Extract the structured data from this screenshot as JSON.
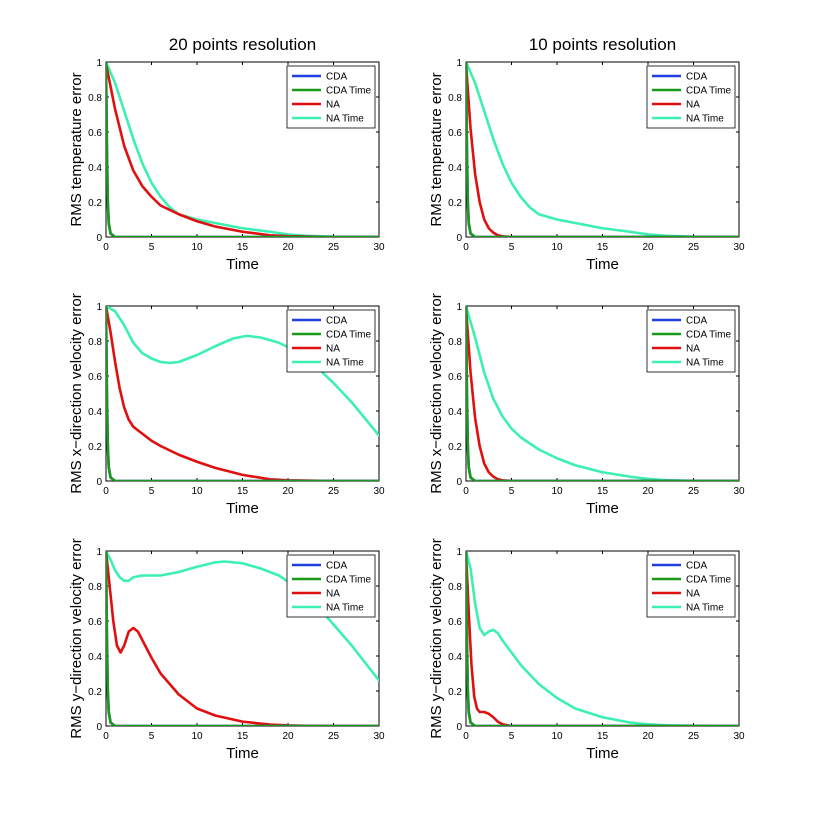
{
  "columns": [
    "20 points resolution",
    "10 points resolution"
  ],
  "chart_data": [
    {
      "type": "line",
      "row": 0,
      "col": 0,
      "title": "20 points resolution",
      "xlabel": "Time",
      "ylabel": "RMS temperature error",
      "xlim": [
        0,
        30
      ],
      "ylim": [
        0,
        1
      ],
      "xticks": [
        0,
        5,
        10,
        15,
        20,
        25,
        30
      ],
      "yticks": [
        0,
        0.2,
        0.4,
        0.6,
        0.8,
        1
      ],
      "series": [
        {
          "name": "CDA",
          "color": "#1f3fe0",
          "x": [
            0,
            0.1,
            0.2,
            0.3,
            0.5,
            1,
            30
          ],
          "y": [
            1,
            0.5,
            0.2,
            0.08,
            0.02,
            0,
            0
          ]
        },
        {
          "name": "CDA Time",
          "color": "#1a9a1a",
          "x": [
            0,
            0.1,
            0.2,
            0.3,
            0.5,
            1,
            30
          ],
          "y": [
            1,
            0.5,
            0.2,
            0.08,
            0.02,
            0,
            0
          ]
        },
        {
          "name": "NA",
          "color": "#e01010",
          "x": [
            0,
            1,
            2,
            3,
            4,
            5,
            6,
            8,
            10,
            12,
            15,
            18,
            20,
            25,
            30
          ],
          "y": [
            0.99,
            0.73,
            0.52,
            0.38,
            0.29,
            0.23,
            0.18,
            0.13,
            0.09,
            0.06,
            0.03,
            0.01,
            0.005,
            0,
            0
          ]
        },
        {
          "name": "NA Time",
          "color": "#3cf0b0",
          "x": [
            0,
            1,
            2,
            3,
            4,
            5,
            6,
            7,
            8,
            10,
            12,
            15,
            18,
            20,
            22,
            25,
            30
          ],
          "y": [
            1,
            0.88,
            0.72,
            0.56,
            0.42,
            0.31,
            0.23,
            0.17,
            0.13,
            0.1,
            0.08,
            0.05,
            0.03,
            0.015,
            0.007,
            0.002,
            0
          ]
        }
      ]
    },
    {
      "type": "line",
      "row": 0,
      "col": 1,
      "title": "10 points resolution",
      "xlabel": "Time",
      "ylabel": "RMS temperature error",
      "xlim": [
        0,
        30
      ],
      "ylim": [
        0,
        1
      ],
      "xticks": [
        0,
        5,
        10,
        15,
        20,
        25,
        30
      ],
      "yticks": [
        0,
        0.2,
        0.4,
        0.6,
        0.8,
        1
      ],
      "series": [
        {
          "name": "CDA",
          "color": "#1f3fe0",
          "x": [
            0,
            0.1,
            0.2,
            0.3,
            0.5,
            1,
            30
          ],
          "y": [
            1,
            0.5,
            0.2,
            0.08,
            0.02,
            0,
            0
          ]
        },
        {
          "name": "CDA Time",
          "color": "#1a9a1a",
          "x": [
            0,
            0.1,
            0.2,
            0.3,
            0.5,
            1,
            30
          ],
          "y": [
            1,
            0.5,
            0.2,
            0.08,
            0.02,
            0,
            0
          ]
        },
        {
          "name": "NA",
          "color": "#e01010",
          "x": [
            0,
            0.5,
            1,
            1.5,
            2,
            2.5,
            3,
            3.5,
            4,
            5,
            30
          ],
          "y": [
            0.99,
            0.62,
            0.36,
            0.2,
            0.1,
            0.05,
            0.025,
            0.01,
            0.004,
            0,
            0
          ]
        },
        {
          "name": "NA Time",
          "color": "#3cf0b0",
          "x": [
            0,
            1,
            2,
            3,
            4,
            5,
            6,
            7,
            8,
            10,
            12,
            15,
            18,
            20,
            22,
            25,
            30
          ],
          "y": [
            1,
            0.88,
            0.72,
            0.56,
            0.42,
            0.31,
            0.23,
            0.17,
            0.13,
            0.1,
            0.08,
            0.05,
            0.03,
            0.015,
            0.007,
            0.002,
            0
          ]
        }
      ]
    },
    {
      "type": "line",
      "row": 1,
      "col": 0,
      "title": "",
      "xlabel": "Time",
      "ylabel": "RMS x−direction velocity error",
      "xlim": [
        0,
        30
      ],
      "ylim": [
        0,
        1
      ],
      "xticks": [
        0,
        5,
        10,
        15,
        20,
        25,
        30
      ],
      "yticks": [
        0,
        0.2,
        0.4,
        0.6,
        0.8,
        1
      ],
      "series": [
        {
          "name": "CDA",
          "color": "#1f3fe0",
          "x": [
            0,
            0.1,
            0.2,
            0.3,
            0.5,
            1,
            30
          ],
          "y": [
            1,
            0.5,
            0.2,
            0.08,
            0.02,
            0,
            0
          ]
        },
        {
          "name": "CDA Time",
          "color": "#1a9a1a",
          "x": [
            0,
            0.1,
            0.2,
            0.3,
            0.5,
            1,
            30
          ],
          "y": [
            1,
            0.5,
            0.2,
            0.08,
            0.02,
            0,
            0
          ]
        },
        {
          "name": "NA",
          "color": "#e01010",
          "x": [
            0,
            0.5,
            1,
            1.5,
            2,
            2.5,
            3,
            4,
            5,
            6,
            8,
            10,
            12,
            15,
            18,
            20,
            25,
            30
          ],
          "y": [
            1,
            0.85,
            0.68,
            0.53,
            0.42,
            0.35,
            0.31,
            0.27,
            0.23,
            0.2,
            0.15,
            0.11,
            0.075,
            0.035,
            0.01,
            0.004,
            0,
            0
          ]
        },
        {
          "name": "NA Time",
          "color": "#3cf0b0",
          "x": [
            0,
            1,
            2,
            3,
            4,
            5,
            6,
            7,
            8,
            10,
            12,
            14,
            15.5,
            17,
            19,
            21,
            23,
            25,
            27,
            30
          ],
          "y": [
            1,
            0.97,
            0.89,
            0.79,
            0.73,
            0.7,
            0.68,
            0.675,
            0.68,
            0.72,
            0.77,
            0.815,
            0.83,
            0.82,
            0.79,
            0.74,
            0.66,
            0.56,
            0.45,
            0.26
          ]
        }
      ]
    },
    {
      "type": "line",
      "row": 1,
      "col": 1,
      "title": "",
      "xlabel": "Time",
      "ylabel": "RMS x−direction velocity error",
      "xlim": [
        0,
        30
      ],
      "ylim": [
        0,
        1
      ],
      "xticks": [
        0,
        5,
        10,
        15,
        20,
        25,
        30
      ],
      "yticks": [
        0,
        0.2,
        0.4,
        0.6,
        0.8,
        1
      ],
      "series": [
        {
          "name": "CDA",
          "color": "#1f3fe0",
          "x": [
            0,
            0.1,
            0.2,
            0.3,
            0.5,
            1,
            30
          ],
          "y": [
            1,
            0.5,
            0.2,
            0.08,
            0.02,
            0,
            0
          ]
        },
        {
          "name": "CDA Time",
          "color": "#1a9a1a",
          "x": [
            0,
            0.1,
            0.2,
            0.3,
            0.5,
            1,
            30
          ],
          "y": [
            1,
            0.5,
            0.2,
            0.08,
            0.02,
            0,
            0
          ]
        },
        {
          "name": "NA",
          "color": "#e01010",
          "x": [
            0,
            0.5,
            1,
            1.5,
            2,
            2.5,
            3,
            3.5,
            4,
            5,
            30
          ],
          "y": [
            0.99,
            0.62,
            0.36,
            0.2,
            0.1,
            0.05,
            0.025,
            0.01,
            0.004,
            0,
            0
          ]
        },
        {
          "name": "NA Time",
          "color": "#3cf0b0",
          "x": [
            0,
            1,
            2,
            3,
            4,
            5,
            6,
            8,
            10,
            12,
            15,
            18,
            20,
            22,
            25,
            30
          ],
          "y": [
            1,
            0.82,
            0.62,
            0.47,
            0.37,
            0.3,
            0.25,
            0.18,
            0.13,
            0.09,
            0.05,
            0.025,
            0.012,
            0.005,
            0.001,
            0
          ]
        }
      ]
    },
    {
      "type": "line",
      "row": 2,
      "col": 0,
      "title": "",
      "xlabel": "Time",
      "ylabel": "RMS y−direction velocity error",
      "xlim": [
        0,
        30
      ],
      "ylim": [
        0,
        1
      ],
      "xticks": [
        0,
        5,
        10,
        15,
        20,
        25,
        30
      ],
      "yticks": [
        0,
        0.2,
        0.4,
        0.6,
        0.8,
        1
      ],
      "series": [
        {
          "name": "CDA",
          "color": "#1f3fe0",
          "x": [
            0,
            0.1,
            0.2,
            0.3,
            0.5,
            1,
            30
          ],
          "y": [
            1,
            0.5,
            0.2,
            0.08,
            0.02,
            0,
            0
          ]
        },
        {
          "name": "CDA Time",
          "color": "#1a9a1a",
          "x": [
            0,
            0.1,
            0.2,
            0.3,
            0.5,
            1,
            30
          ],
          "y": [
            1,
            0.5,
            0.2,
            0.08,
            0.02,
            0,
            0
          ]
        },
        {
          "name": "NA",
          "color": "#e01010",
          "x": [
            0,
            0.4,
            0.8,
            1.2,
            1.6,
            2,
            2.5,
            3,
            3.5,
            4,
            5,
            6,
            8,
            10,
            12,
            15,
            18,
            20,
            22,
            25,
            30
          ],
          "y": [
            1,
            0.8,
            0.6,
            0.46,
            0.42,
            0.46,
            0.54,
            0.56,
            0.54,
            0.49,
            0.39,
            0.3,
            0.18,
            0.1,
            0.06,
            0.025,
            0.008,
            0.003,
            0.001,
            0,
            0
          ]
        },
        {
          "name": "NA Time",
          "color": "#3cf0b0",
          "x": [
            0,
            0.5,
            1,
            1.5,
            2,
            2.5,
            3,
            4,
            5,
            6,
            8,
            10,
            12,
            13,
            15,
            17,
            19,
            21,
            23,
            25,
            27,
            30
          ],
          "y": [
            1,
            0.95,
            0.89,
            0.85,
            0.83,
            0.83,
            0.85,
            0.86,
            0.86,
            0.86,
            0.88,
            0.91,
            0.935,
            0.94,
            0.93,
            0.9,
            0.86,
            0.79,
            0.7,
            0.58,
            0.46,
            0.26
          ]
        }
      ]
    },
    {
      "type": "line",
      "row": 2,
      "col": 1,
      "title": "",
      "xlabel": "Time",
      "ylabel": "RMS y−direction velocity error",
      "xlim": [
        0,
        30
      ],
      "ylim": [
        0,
        1
      ],
      "xticks": [
        0,
        5,
        10,
        15,
        20,
        25,
        30
      ],
      "yticks": [
        0,
        0.2,
        0.4,
        0.6,
        0.8,
        1
      ],
      "series": [
        {
          "name": "CDA",
          "color": "#1f3fe0",
          "x": [
            0,
            0.1,
            0.2,
            0.3,
            0.5,
            1,
            30
          ],
          "y": [
            1,
            0.5,
            0.2,
            0.08,
            0.02,
            0,
            0
          ]
        },
        {
          "name": "CDA Time",
          "color": "#1a9a1a",
          "x": [
            0,
            0.1,
            0.2,
            0.3,
            0.5,
            1,
            30
          ],
          "y": [
            1,
            0.5,
            0.2,
            0.08,
            0.02,
            0,
            0
          ]
        },
        {
          "name": "NA",
          "color": "#e01010",
          "x": [
            0,
            0.3,
            0.6,
            0.9,
            1.2,
            1.5,
            2,
            2.5,
            3,
            3.5,
            4,
            5,
            30
          ],
          "y": [
            0.99,
            0.65,
            0.35,
            0.17,
            0.1,
            0.08,
            0.08,
            0.07,
            0.05,
            0.025,
            0.01,
            0,
            0
          ]
        },
        {
          "name": "NA Time",
          "color": "#3cf0b0",
          "x": [
            0,
            0.5,
            1,
            1.5,
            2,
            2.5,
            3,
            3.5,
            4,
            5,
            6,
            8,
            10,
            12,
            15,
            18,
            20,
            22,
            25,
            30
          ],
          "y": [
            1,
            0.9,
            0.7,
            0.56,
            0.52,
            0.54,
            0.55,
            0.53,
            0.49,
            0.42,
            0.35,
            0.24,
            0.16,
            0.1,
            0.05,
            0.02,
            0.01,
            0.004,
            0.001,
            0
          ]
        }
      ]
    }
  ]
}
